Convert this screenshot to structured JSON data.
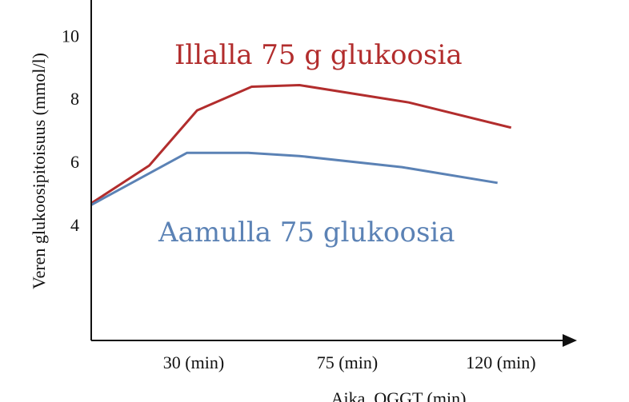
{
  "chart_data": {
    "type": "line",
    "xlabel": "Aika, OGGT (min)",
    "ylabel": "Veren glukoosipitoisuus (mmol/l)",
    "x_ticks": [
      {
        "x": 30,
        "label": "30 (min)"
      },
      {
        "x": 75,
        "label": "75 (min)"
      },
      {
        "x": 120,
        "label": "120 (min)"
      }
    ],
    "y_ticks": [
      4,
      6,
      8,
      10
    ],
    "xlim": [
      0,
      139
    ],
    "ylim": [
      0.4,
      11.2
    ],
    "grid": false,
    "series": [
      {
        "name": "Illalla 75 g glukoosia",
        "color": "#b22d2d",
        "x": [
          0,
          17,
          31,
          47,
          61,
          93,
          123
        ],
        "y": [
          4.75,
          5.95,
          7.7,
          8.45,
          8.5,
          7.95,
          7.15
        ]
      },
      {
        "name": "Aamulla 75 glukoosia",
        "color": "#5b82b5",
        "x": [
          0,
          28,
          46,
          61,
          91,
          119
        ],
        "y": [
          4.7,
          6.35,
          6.35,
          6.25,
          5.9,
          5.4
        ]
      }
    ]
  }
}
